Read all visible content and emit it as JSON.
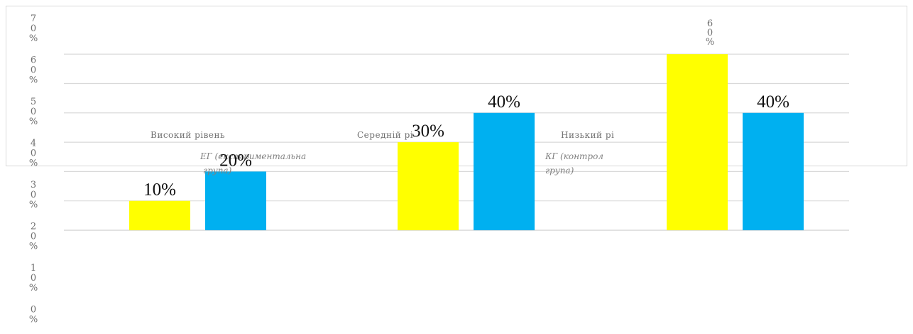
{
  "chart_data": {
    "type": "bar",
    "categories": [
      "Високий рівень",
      "Середній рі",
      "Низький рі"
    ],
    "series": [
      {
        "name": "ЕГ (експериментальна група)",
        "color": "#ffff00",
        "values": [
          10,
          30,
          60
        ]
      },
      {
        "name": "КГ (контрольна група)",
        "color": "#00b0f0",
        "values": [
          20,
          40,
          40
        ]
      }
    ],
    "data_labels": [
      [
        "10%",
        "30%",
        "60%"
      ],
      [
        "20%",
        "40%",
        "40%"
      ]
    ],
    "y_ticks": [
      "0%",
      "10%",
      "20%",
      "30%",
      "40%",
      "50%",
      "60%",
      "70%"
    ],
    "ylim": [
      0,
      70
    ],
    "grid": true,
    "legend_labels": [
      "ЕГ (експериментальна",
      "група)",
      "КГ (контрол",
      "група)"
    ]
  }
}
